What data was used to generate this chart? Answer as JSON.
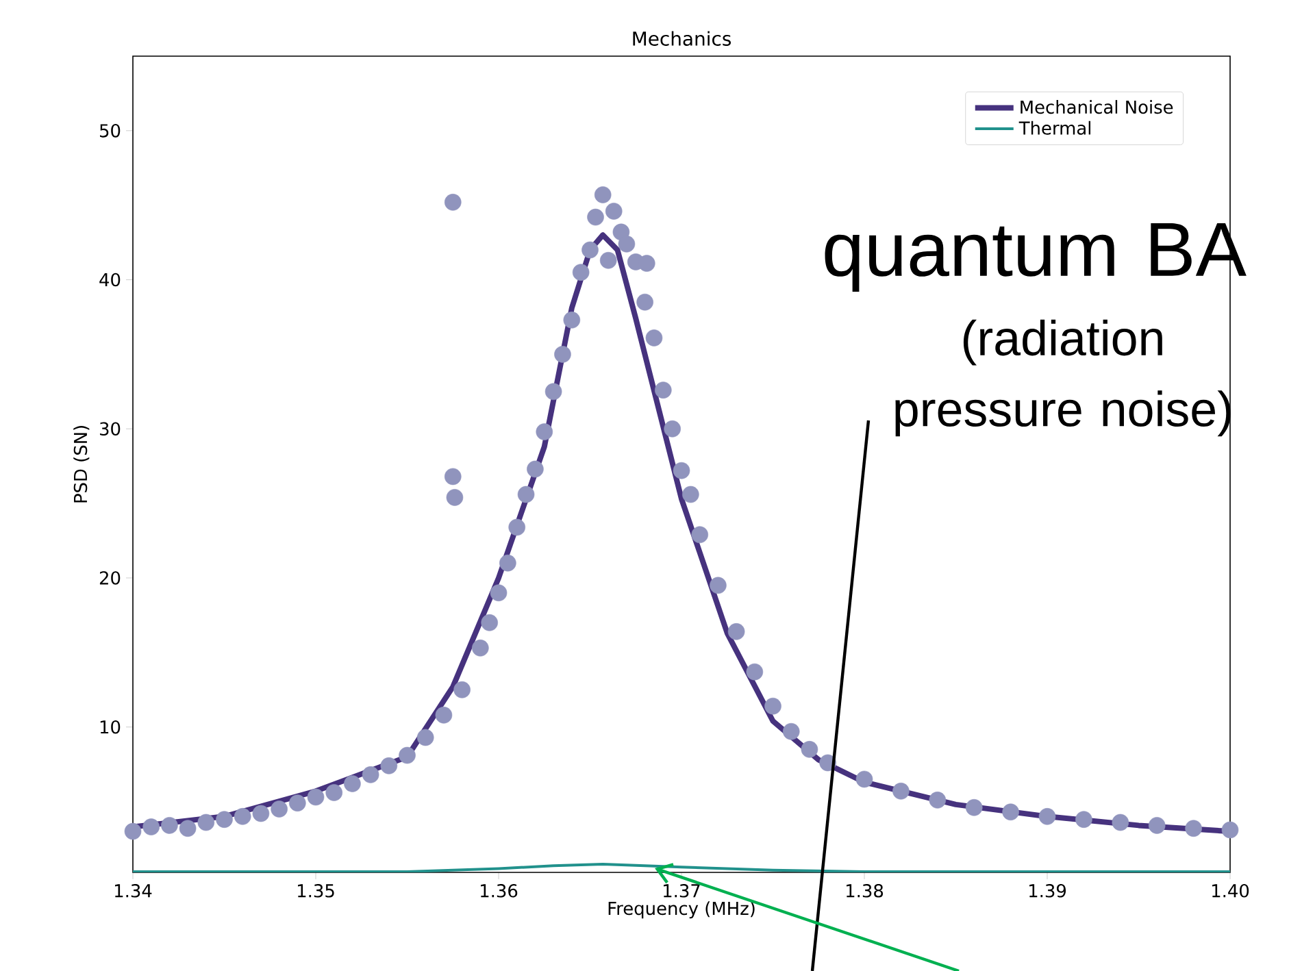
{
  "chart_data": {
    "type": "line",
    "title": "Mechanics",
    "xlabel": "Frequency (MHz)",
    "ylabel": "PSD (SN)",
    "xlim": [
      1.34,
      1.4
    ],
    "xticks": [
      1.34,
      1.35,
      1.36,
      1.37,
      1.38,
      1.39,
      {
        "value": 1.4,
        "label": "1.40"
      }
    ],
    "ylim": [
      0.25,
      55
    ],
    "yticks": [
      10,
      20,
      30,
      40,
      50
    ],
    "grid": false,
    "legend": "top right",
    "series": [
      {
        "type": "scatter",
        "marker": "circle",
        "color": "#9094bd",
        "x": [
          1.34,
          1.341,
          1.342,
          1.343,
          1.344,
          1.345,
          1.346,
          1.347,
          1.348,
          1.349,
          1.35,
          1.351,
          1.352,
          1.353,
          1.354,
          1.355,
          1.356,
          1.357,
          1.3575,
          1.3575,
          1.3576,
          1.358,
          1.359,
          1.3595,
          1.36,
          1.3605,
          1.361,
          1.3615,
          1.362,
          1.3625,
          1.363,
          1.3635,
          1.364,
          1.3645,
          1.365,
          1.3653,
          1.3657,
          1.366,
          1.3663,
          1.3667,
          1.367,
          1.3675,
          1.3681,
          1.368,
          1.3685,
          1.369,
          1.3695,
          1.37,
          1.3705,
          1.371,
          1.372,
          1.373,
          1.374,
          1.375,
          1.376,
          1.377,
          1.378,
          1.38,
          1.382,
          1.384,
          1.386,
          1.388,
          1.39,
          1.392,
          1.394,
          1.396,
          1.398,
          1.4
        ],
        "values": [
          3.0,
          3.3,
          3.4,
          3.2,
          3.6,
          3.8,
          4.0,
          4.2,
          4.5,
          4.9,
          5.3,
          5.6,
          6.2,
          6.8,
          7.4,
          8.1,
          9.3,
          10.8,
          45.2,
          26.8,
          25.4,
          12.5,
          15.3,
          17.0,
          19.0,
          21.0,
          23.4,
          25.6,
          27.3,
          29.8,
          32.5,
          35.0,
          37.3,
          40.5,
          42.0,
          44.2,
          45.7,
          41.3,
          44.6,
          43.2,
          42.4,
          41.2,
          41.1,
          38.5,
          36.1,
          32.6,
          30.0,
          27.2,
          25.6,
          22.9,
          19.5,
          16.4,
          13.7,
          11.4,
          9.7,
          8.5,
          7.6,
          6.5,
          5.7,
          5.1,
          4.6,
          4.3,
          4.0,
          3.8,
          3.6,
          3.4,
          3.2,
          3.1
        ]
      },
      {
        "name": "Mechanical Noise",
        "color": "#46327e",
        "x": [
          1.34,
          1.345,
          1.35,
          1.355,
          1.3575,
          1.36,
          1.3625,
          1.364,
          1.365,
          1.3657,
          1.3665,
          1.3675,
          1.37,
          1.3725,
          1.375,
          1.3775,
          1.38,
          1.385,
          1.39,
          1.395,
          1.4
        ],
        "values": [
          3.3,
          4.0,
          5.7,
          8.0,
          12.7,
          20.0,
          28.8,
          38.1,
          42.0,
          43.0,
          42.0,
          37.4,
          25.3,
          16.3,
          10.4,
          7.8,
          6.3,
          4.8,
          4.0,
          3.4,
          3.0
        ]
      },
      {
        "name": "Thermal",
        "color": "#21918c",
        "x": [
          1.34,
          1.35,
          1.355,
          1.36,
          1.363,
          1.3657,
          1.368,
          1.37,
          1.375,
          1.38,
          1.385,
          1.39,
          1.4
        ],
        "values": [
          0.3,
          0.3,
          0.3,
          0.5,
          0.7,
          0.8,
          0.7,
          0.6,
          0.4,
          0.3,
          0.3,
          0.3,
          0.3
        ]
      }
    ],
    "annotations": [
      "quantum BA",
      "(radiation pressure noise)"
    ]
  }
}
